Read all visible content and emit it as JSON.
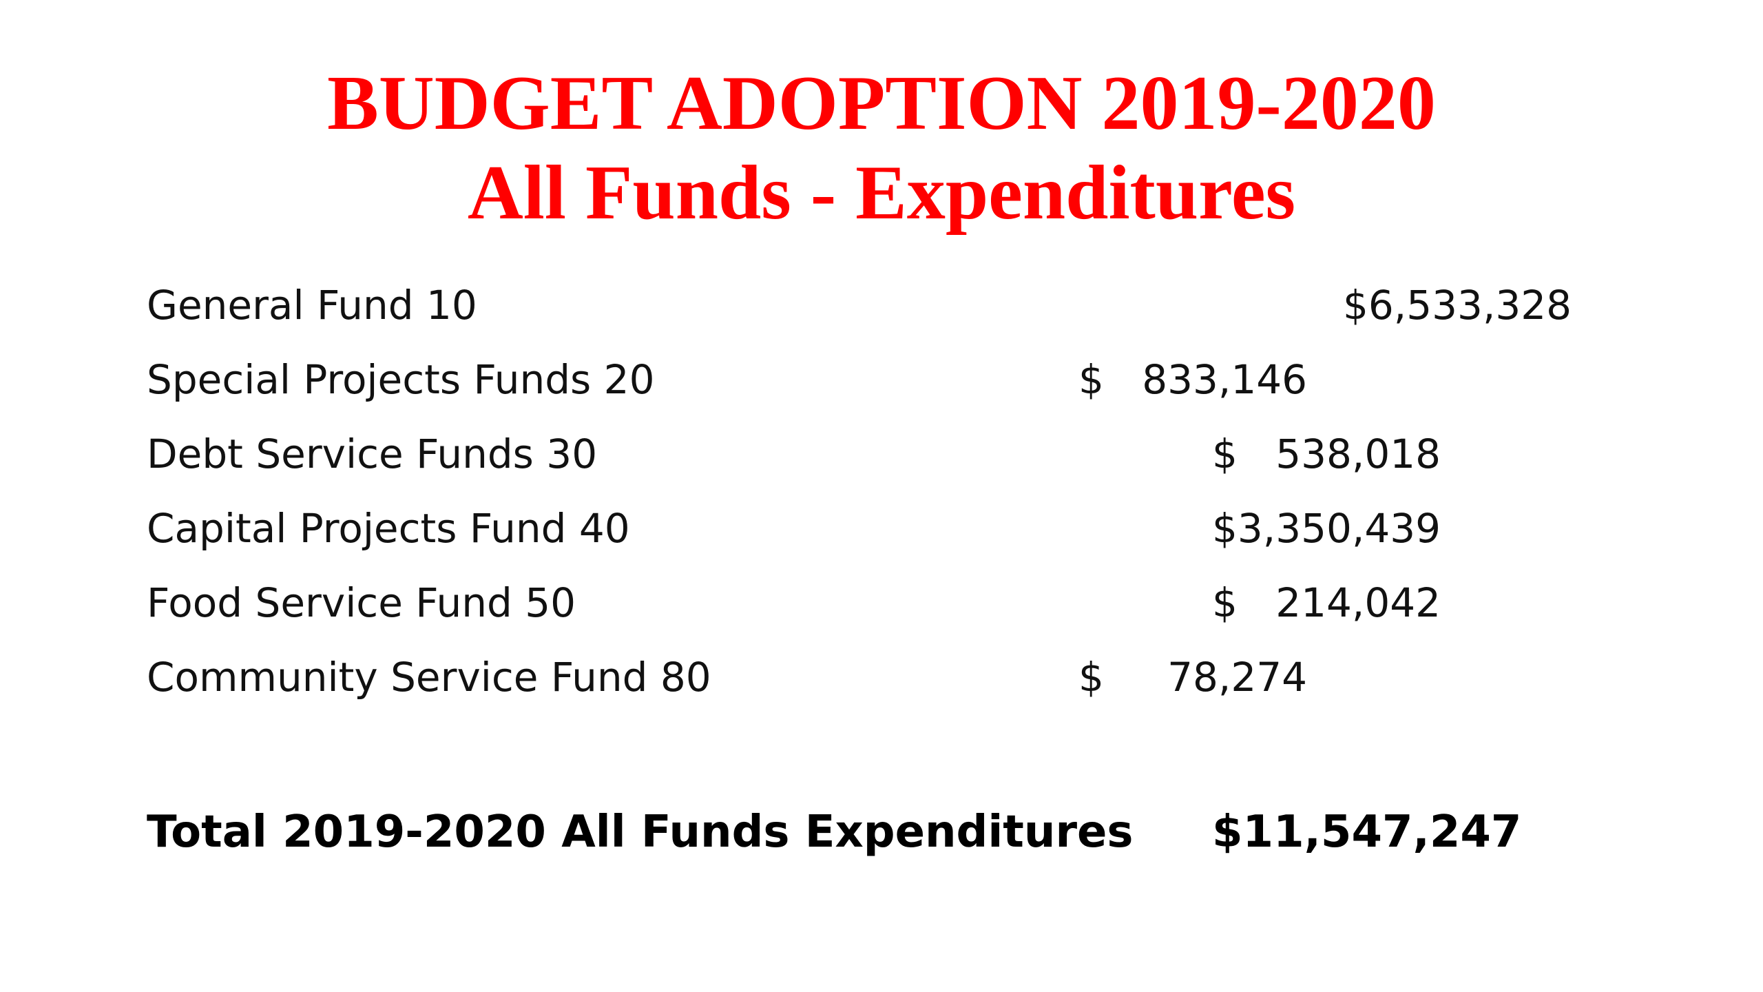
{
  "title": {
    "line1": "BUDGET ADOPTION 2019-2020",
    "line2": "All Funds - Expenditures"
  },
  "rows": [
    {
      "label": "General Fund 10",
      "amount": "$6,533,328"
    },
    {
      "label": "Special Projects Funds 20",
      "amount": "$   833,146"
    },
    {
      "label": "Debt Service Funds 30",
      "amount": "$   538,018"
    },
    {
      "label": "Capital Projects Fund 40",
      "amount": "$3,350,439"
    },
    {
      "label": "Food Service Fund 50",
      "amount": "$   214,042"
    },
    {
      "label": "Community Service Fund 80",
      "amount": "$     78,274"
    }
  ],
  "total": {
    "label": "Total 2019-2020 All Funds Expenditures",
    "amount": "$11,547,247"
  }
}
